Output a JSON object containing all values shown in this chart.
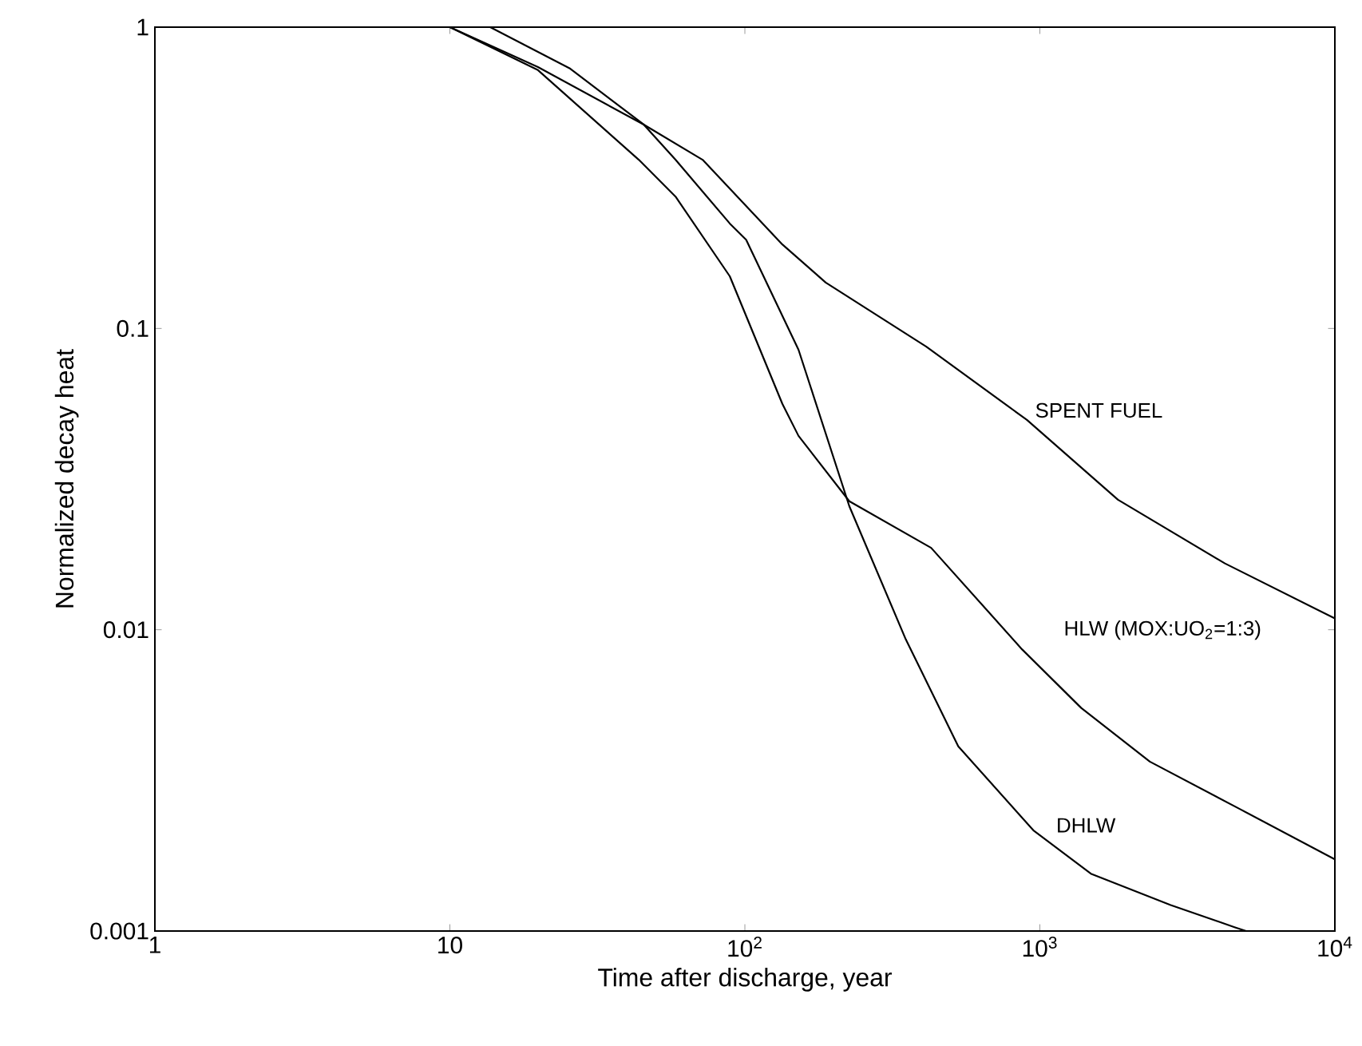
{
  "chart_data": {
    "type": "line",
    "xlabel": "Time after discharge, year",
    "ylabel": "Normalized decay heat",
    "log": "xy",
    "grid": false,
    "legend": false,
    "marker": "none",
    "line_style": "solid",
    "xlim": [
      1,
      10000
    ],
    "ylim": [
      0.001,
      1
    ],
    "xticks": [
      1,
      10,
      {
        "value": 100,
        "label": "10$^{2}$"
      },
      {
        "value": 1000,
        "label": "10$^{3}$"
      },
      {
        "value": 10000,
        "label": "10$^{4}$"
      }
    ],
    "yticks": [
      0.001,
      0.01,
      0.1,
      1
    ],
    "series": [
      {
        "name": "SPENT FUEL",
        "color": "#000000",
        "x": [
          10,
          19.9,
          45.4,
          71.9,
          134,
          188,
          412,
          904,
          1840,
          4240,
          10000
        ],
        "values": [
          1,
          0.737,
          0.475,
          0.363,
          0.19,
          0.142,
          0.087,
          0.0497,
          0.027,
          0.0166,
          0.0109
        ]
      },
      {
        "name": "HLW (MOX:UO$_{2}$=1:3)",
        "color": "#000000",
        "x": [
          10,
          19.9,
          43.7,
          58.2,
          88.9,
          134,
          152,
          226,
          428,
          871,
          1381,
          2360,
          4800,
          10000
        ],
        "values": [
          1,
          0.72,
          0.363,
          0.274,
          0.149,
          0.0562,
          0.044,
          0.0267,
          0.0187,
          0.0086,
          0.0055,
          0.00365,
          0.00253,
          0.00173
        ]
      },
      {
        "name": "DHLW",
        "color": "#000000",
        "x": [
          13.7,
          25.6,
          45.4,
          58.2,
          88.9,
          101,
          152,
          226,
          351,
          529,
          950,
          1489,
          2776,
          4570,
          5000
        ],
        "values": [
          1,
          0.728,
          0.475,
          0.363,
          0.223,
          0.197,
          0.085,
          0.0257,
          0.0093,
          0.0041,
          0.00216,
          0.00155,
          0.00122,
          0.00103,
          0.001
        ]
      }
    ]
  }
}
